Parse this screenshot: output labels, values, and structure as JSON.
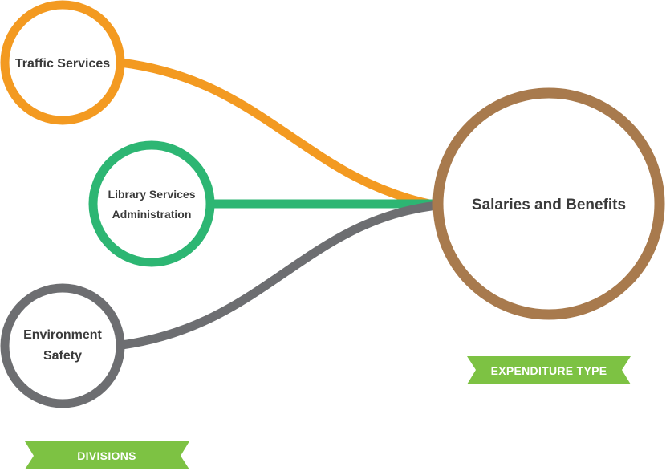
{
  "nodes": {
    "traffic_services": {
      "lines": [
        "Traffic Services"
      ],
      "color": "#f39a21"
    },
    "library_services_administration": {
      "lines": [
        "Library Services",
        "Administration"
      ],
      "color": "#2db673"
    },
    "environment_safety": {
      "lines": [
        "Environment",
        "Safety"
      ],
      "color": "#6d6e71"
    },
    "salaries_and_benefits": {
      "lines": [
        "Salaries and Benefits"
      ],
      "color": "#a87a4d"
    }
  },
  "links": [
    {
      "from": "traffic_services",
      "to": "salaries_and_benefits",
      "color": "#f39a21"
    },
    {
      "from": "library_services_administration",
      "to": "salaries_and_benefits",
      "color": "#2db673"
    },
    {
      "from": "environment_safety",
      "to": "salaries_and_benefits",
      "color": "#6d6e71"
    }
  ],
  "banners": {
    "expenditure_type": {
      "label": "EXPENDITURE TYPE",
      "color": "#7dc243"
    },
    "divisions": {
      "label": "DIVISIONS",
      "color": "#7dc243"
    }
  }
}
